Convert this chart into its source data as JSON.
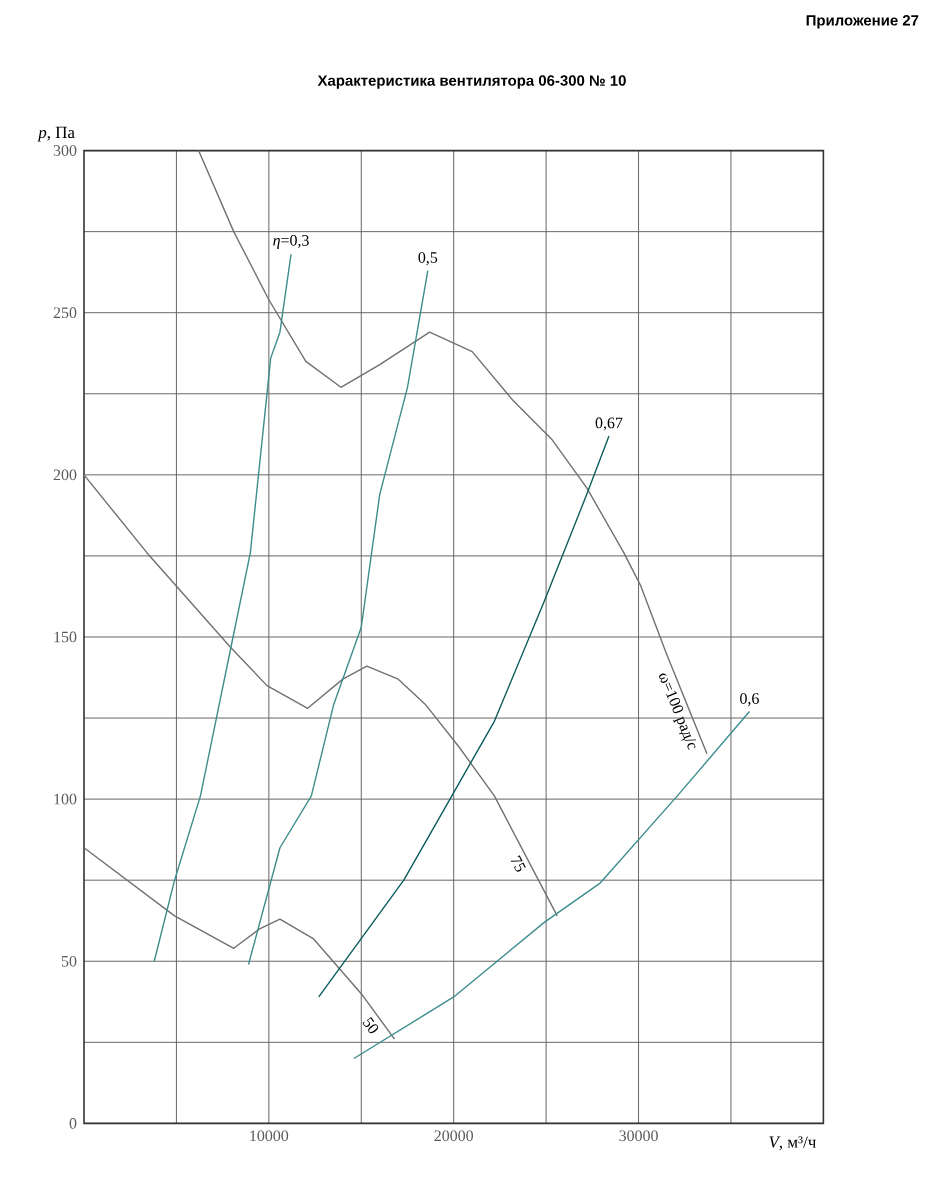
{
  "chart_data": {
    "type": "line",
    "title": "Характеристика вентилятора 06-300 № 10",
    "xlabel": "*V*, м³/ч",
    "ylabel": "*p*, Па",
    "xlim": [
      0,
      40000
    ],
    "ylim": [
      0,
      300
    ],
    "xticks": [
      {
        "value": 5000,
        "label": null
      },
      10000,
      {
        "value": 15000,
        "label": null
      },
      20000,
      {
        "value": 25000,
        "label": null
      },
      30000,
      {
        "value": 35000,
        "label": null
      }
    ],
    "yticks": [
      0,
      {
        "value": 25,
        "label": null
      },
      50,
      {
        "value": 75,
        "label": null
      },
      100,
      {
        "value": 125,
        "label": null
      },
      150,
      {
        "value": 175,
        "label": null
      },
      200,
      {
        "value": 225,
        "label": null
      },
      250,
      {
        "value": 275,
        "label": null
      },
      300
    ],
    "grid": true,
    "series": [
      {
        "name": "ω=100 рад/с",
        "color": "#707070",
        "x": [
          6200,
          8100,
          10000,
          12000,
          13900,
          16000,
          18700,
          21000,
          23200,
          25300,
          27200,
          29200,
          30100,
          31500,
          33700
        ],
        "values": [
          300,
          275,
          254,
          235,
          227,
          234,
          244,
          238,
          223,
          211,
          196,
          176,
          166,
          145,
          114
        ]
      },
      {
        "name": "75",
        "color": "#707070",
        "x": [
          0,
          3400,
          7900,
          9900,
          12100,
          14000,
          15300,
          17000,
          18500,
          20300,
          22200,
          25600
        ],
        "values": [
          200,
          176,
          147,
          135,
          128,
          137,
          141,
          137,
          129,
          116,
          101,
          64
        ]
      },
      {
        "name": "50",
        "color": "#707070",
        "x": [
          0,
          4900,
          8100,
          9500,
          10600,
          12400,
          15000,
          16800
        ],
        "values": [
          85,
          64,
          54,
          60,
          63,
          57,
          40,
          26
        ]
      },
      {
        "name": "*η*=0,3",
        "color": "#3d8c8c",
        "x": [
          3800,
          4900,
          6300,
          8100,
          9000,
          10100,
          10600,
          11200
        ],
        "values": [
          50,
          75,
          101,
          151,
          176,
          236,
          244,
          268
        ]
      },
      {
        "name": "0,5",
        "color": "#3d8c8c",
        "x": [
          8900,
          10600,
          12300,
          13500,
          15000,
          16000,
          17500,
          18600
        ],
        "values": [
          49,
          85,
          101,
          129,
          153,
          194,
          227,
          263
        ]
      },
      {
        "name": "0,67",
        "color": "#0d5c5c",
        "x": [
          12700,
          15000,
          17300,
          20000,
          20900,
          22200,
          24900,
          27200,
          28400
        ],
        "values": [
          39,
          57,
          75,
          102,
          111,
          124,
          161,
          194,
          212
        ]
      },
      {
        "name": "0,6",
        "color": "#3d8c8c",
        "x": [
          14600,
          20000,
          24900,
          27900,
          32100,
          36000
        ],
        "values": [
          20,
          39,
          62,
          74,
          101,
          127
        ]
      }
    ],
    "annotations": [
      "Приложение 27"
    ]
  }
}
